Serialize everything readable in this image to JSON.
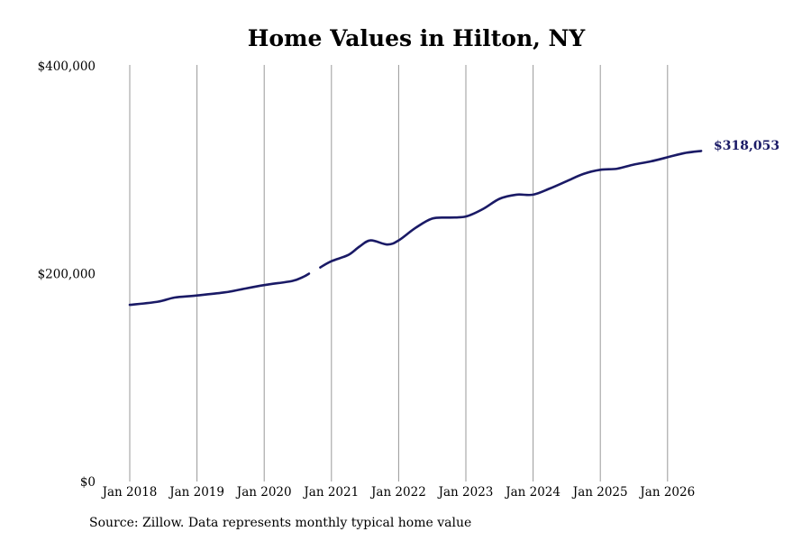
{
  "chart_data": {
    "type": "line",
    "title": "Home Values in Hilton, NY",
    "xlabel": "",
    "ylabel": "",
    "ylim": [
      0,
      400000
    ],
    "y_ticks": [
      {
        "value": 0,
        "label": "$0"
      },
      {
        "value": 200000,
        "label": "$200,000"
      },
      {
        "value": 400000,
        "label": "$400,000"
      }
    ],
    "x_ticks": [
      "Jan 2018",
      "Jan 2019",
      "Jan 2020",
      "Jan 2021",
      "Jan 2022",
      "Jan 2023",
      "Jan 2024",
      "Jan 2025",
      "Jan 2026"
    ],
    "x_range": [
      "2018-01",
      "2026-07"
    ],
    "grid": "vertical",
    "line_color": "#1a1a66",
    "series": [
      {
        "points": [
          [
            "2018-01",
            170000
          ],
          [
            "2018-06",
            173000
          ],
          [
            "2018-09",
            177000
          ],
          [
            "2019-01",
            179000
          ],
          [
            "2019-06",
            182000
          ],
          [
            "2019-09",
            185000
          ],
          [
            "2020-01",
            189000
          ],
          [
            "2020-06",
            193000
          ],
          [
            "2020-08",
            197000
          ],
          [
            "2020-09",
            200000
          ]
        ]
      },
      {
        "points": [
          [
            "2020-11",
            206000
          ],
          [
            "2021-01",
            212000
          ],
          [
            "2021-04",
            218000
          ],
          [
            "2021-06",
            226000
          ],
          [
            "2021-08",
            232000
          ],
          [
            "2021-11",
            228000
          ],
          [
            "2022-01",
            232000
          ],
          [
            "2022-04",
            244000
          ],
          [
            "2022-07",
            253000
          ],
          [
            "2022-10",
            254000
          ],
          [
            "2023-01",
            255000
          ],
          [
            "2023-04",
            262000
          ],
          [
            "2023-07",
            272000
          ],
          [
            "2023-10",
            276000
          ],
          [
            "2024-01",
            276000
          ],
          [
            "2024-04",
            282000
          ],
          [
            "2024-07",
            289000
          ],
          [
            "2024-10",
            296000
          ],
          [
            "2025-01",
            300000
          ],
          [
            "2025-04",
            301000
          ],
          [
            "2025-07",
            305000
          ],
          [
            "2025-10",
            308000
          ],
          [
            "2026-01",
            312000
          ],
          [
            "2026-04",
            316000
          ],
          [
            "2026-07",
            318053
          ]
        ]
      }
    ],
    "end_label": "$318,053"
  },
  "footer": {
    "source": "Source: Zillow. Data represents monthly typical home value"
  }
}
